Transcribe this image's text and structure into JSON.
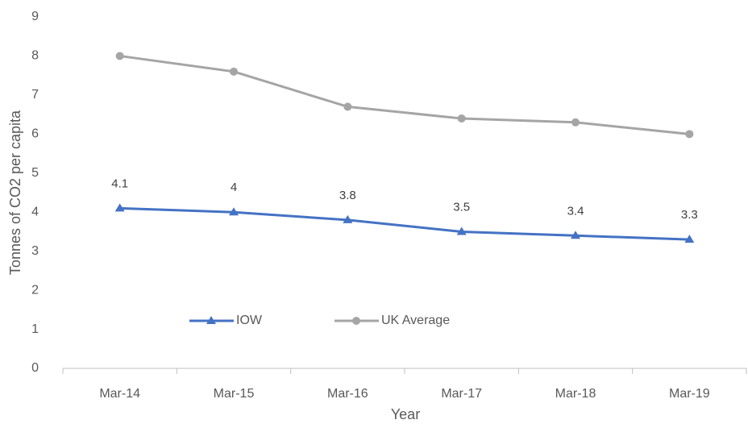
{
  "chart_data": {
    "type": "line",
    "x_label": "Year",
    "y_label": "Tonnes of CO2 per capita",
    "categories": [
      "Mar-14",
      "Mar-15",
      "Mar-16",
      "Mar-17",
      "Mar-18",
      "Mar-19"
    ],
    "series": [
      {
        "name": "IOW",
        "color": "#4472c4",
        "marker": "triangle",
        "data_labels": true,
        "values": [
          4.1,
          4,
          3.8,
          3.5,
          3.4,
          3.3
        ]
      },
      {
        "name": "UK Average",
        "color": "#a5a5a5",
        "marker": "circle",
        "data_labels": false,
        "values": [
          8,
          7.6,
          6.7,
          6.4,
          6.3,
          6
        ]
      }
    ],
    "ylim": [
      0,
      9
    ],
    "yticks": [
      0,
      1,
      2,
      3,
      4,
      5,
      6,
      7,
      8,
      9
    ],
    "grid": false
  }
}
